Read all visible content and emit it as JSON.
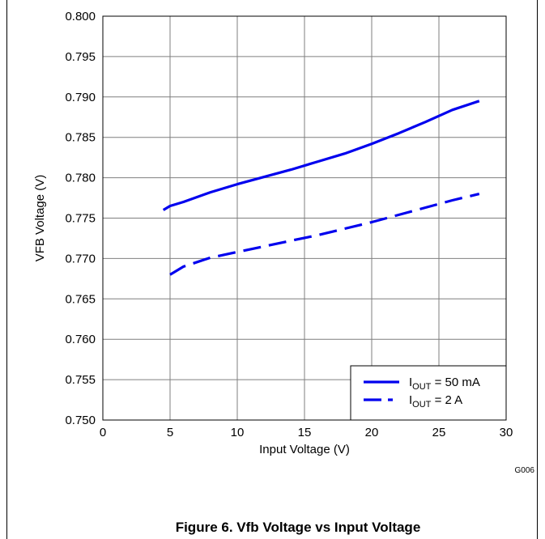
{
  "chart_data": {
    "type": "line",
    "title": "",
    "xlabel": "Input Voltage (V)",
    "ylabel": "VFB Voltage (V)",
    "xlim": [
      0,
      30
    ],
    "ylim": [
      0.75,
      0.8
    ],
    "x_ticks": [
      "0",
      "5",
      "10",
      "15",
      "20",
      "25",
      "30"
    ],
    "y_ticks": [
      "0.750",
      "0.755",
      "0.760",
      "0.765",
      "0.770",
      "0.775",
      "0.780",
      "0.785",
      "0.790",
      "0.795",
      "0.800"
    ],
    "grid": true,
    "legend_position": "bottom-right",
    "series": [
      {
        "name": "IOUT = 50 mA",
        "style": "solid",
        "color": "#0000ee",
        "x": [
          4.5,
          5,
          6,
          8,
          10,
          12,
          14,
          16,
          18,
          20,
          22,
          24,
          26,
          28
        ],
        "y": [
          0.776,
          0.7765,
          0.777,
          0.7782,
          0.7792,
          0.7801,
          0.781,
          0.782,
          0.783,
          0.7842,
          0.7855,
          0.7869,
          0.7884,
          0.7895
        ]
      },
      {
        "name": "IOUT = 2 A",
        "style": "dashed",
        "color": "#0000ee",
        "x": [
          5,
          6,
          8,
          10,
          12,
          14,
          16,
          18,
          20,
          22,
          24,
          26,
          28
        ],
        "y": [
          0.768,
          0.769,
          0.7701,
          0.7708,
          0.7715,
          0.7722,
          0.7729,
          0.7737,
          0.7745,
          0.7754,
          0.7763,
          0.7772,
          0.778
        ]
      }
    ],
    "legend": [
      {
        "main": "I",
        "sub": "OUT",
        "rest": " = 50 mA"
      },
      {
        "main": "I",
        "sub": "OUT",
        "rest": " = 2 A"
      }
    ]
  },
  "figure_code": "G006",
  "caption": "Figure 6. Vfb Voltage vs Input Voltage"
}
